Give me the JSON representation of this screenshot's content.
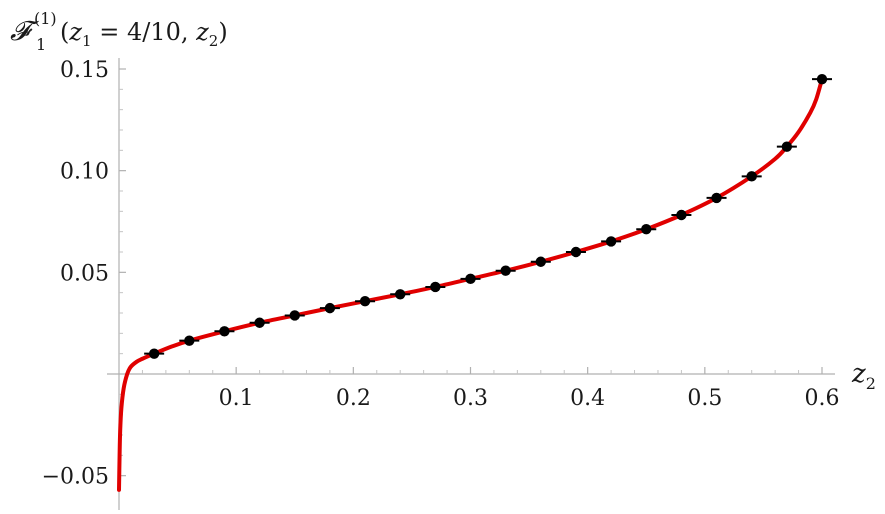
{
  "chart_data": {
    "type": "line",
    "ylabel": {
      "symbol": "𝓕",
      "superscript": "(1)",
      "subscript": "1",
      "args_open": "(",
      "z1": "z",
      "z1_sub": "1",
      "equals_value": " = 4/10, ",
      "z2": "z",
      "z2_sub": "2",
      "args_close": ")"
    },
    "xlabel": {
      "symbol": "z",
      "sub": "2"
    },
    "xlim": [
      0,
      0.6
    ],
    "ylim": [
      -0.06,
      0.15
    ],
    "x_ticks": [
      0.1,
      0.2,
      0.3,
      0.4,
      0.5,
      0.6
    ],
    "x_tick_labels": [
      "0.1",
      "0.2",
      "0.3",
      "0.4",
      "0.5",
      "0.6"
    ],
    "y_ticks": [
      -0.05,
      0.05,
      0.1,
      0.15
    ],
    "y_tick_labels": [
      "−0.05",
      "0.05",
      "0.10",
      "0.15"
    ],
    "grid": false,
    "series": [
      {
        "kind": "curve",
        "color": "#e00000",
        "x": [
          0.0,
          0.0005,
          0.001,
          0.002,
          0.004,
          0.007,
          0.01,
          0.015,
          0.02,
          0.03,
          0.045,
          0.06,
          0.09,
          0.12,
          0.15,
          0.18,
          0.21,
          0.24,
          0.27,
          0.3,
          0.33,
          0.36,
          0.39,
          0.42,
          0.45,
          0.48,
          0.51,
          0.54,
          0.56,
          0.57,
          0.58,
          0.59,
          0.595,
          0.6
        ],
        "y": [
          -0.057,
          -0.04,
          -0.028,
          -0.017,
          -0.007,
          0.0,
          0.0035,
          0.006,
          0.0075,
          0.01,
          0.0135,
          0.0164,
          0.021,
          0.0252,
          0.0288,
          0.0324,
          0.0358,
          0.0392,
          0.0428,
          0.0468,
          0.0508,
          0.0552,
          0.06,
          0.0652,
          0.0712,
          0.0782,
          0.0866,
          0.0972,
          0.1058,
          0.1118,
          0.119,
          0.1285,
          0.135,
          0.145
        ]
      },
      {
        "kind": "points_with_error_bars",
        "color": "#000000",
        "x": [
          0.03,
          0.06,
          0.09,
          0.12,
          0.15,
          0.18,
          0.21,
          0.24,
          0.27,
          0.3,
          0.33,
          0.36,
          0.39,
          0.42,
          0.45,
          0.48,
          0.51,
          0.54,
          0.57,
          0.6
        ],
        "y": [
          0.01,
          0.0164,
          0.021,
          0.0252,
          0.0288,
          0.0324,
          0.0358,
          0.0392,
          0.0428,
          0.0468,
          0.0508,
          0.0552,
          0.06,
          0.0652,
          0.0712,
          0.0782,
          0.0866,
          0.0972,
          0.1118,
          0.145
        ]
      }
    ]
  }
}
